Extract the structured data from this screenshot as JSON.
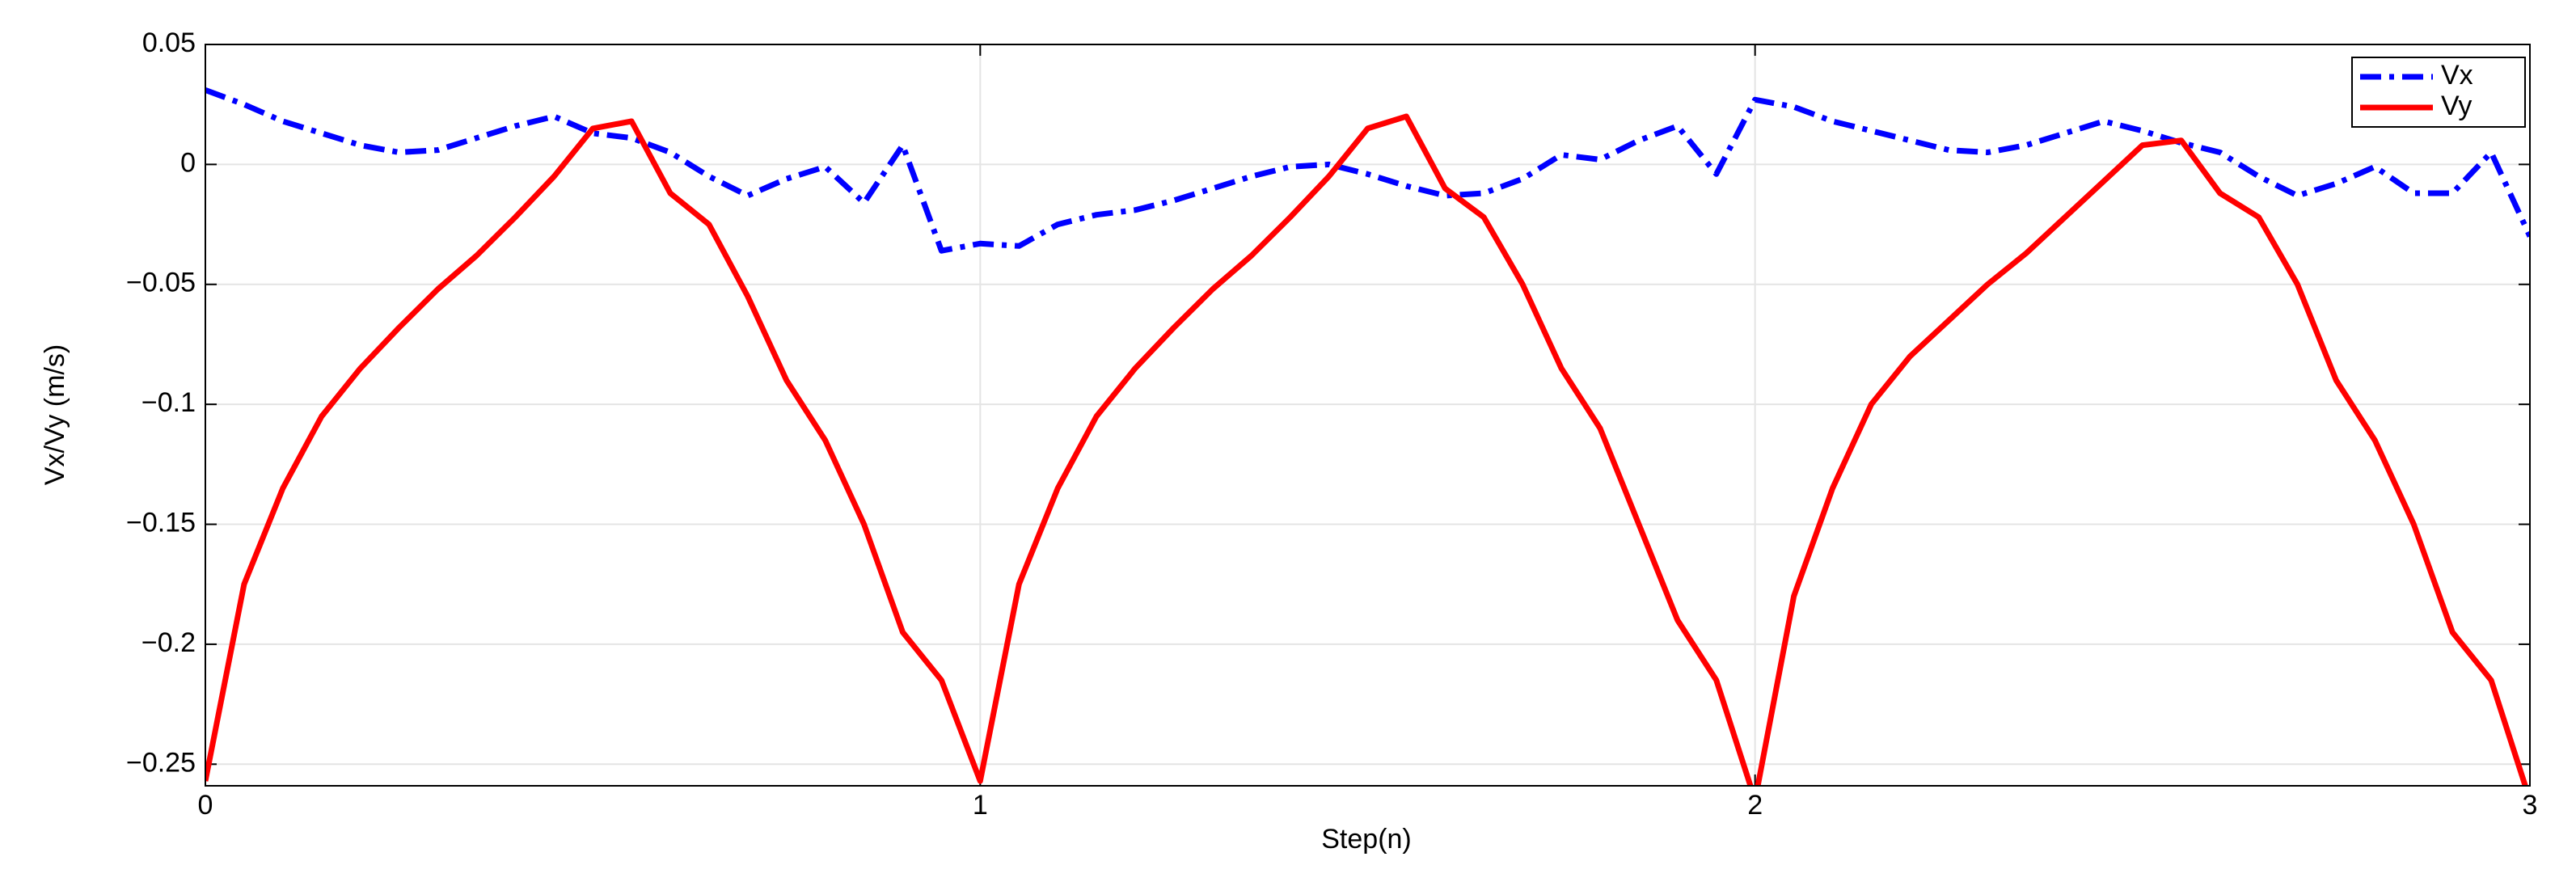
{
  "chart_data": {
    "type": "line",
    "xlabel": "Step(n)",
    "ylabel": "Vx/Vy (m/s)",
    "x": [
      0,
      0.05,
      0.1,
      0.15,
      0.2,
      0.25,
      0.3,
      0.35,
      0.4,
      0.45,
      0.5,
      0.55,
      0.6,
      0.65,
      0.7,
      0.75,
      0.8,
      0.85,
      0.9,
      0.95,
      1,
      1.05,
      1.1,
      1.15,
      1.2,
      1.25,
      1.3,
      1.35,
      1.4,
      1.45,
      1.5,
      1.55,
      1.6,
      1.65,
      1.7,
      1.75,
      1.8,
      1.85,
      1.9,
      1.95,
      2,
      2.05,
      2.1,
      2.15,
      2.2,
      2.25,
      2.3,
      2.35,
      2.4,
      2.45,
      2.5,
      2.55,
      2.6,
      2.65,
      2.7,
      2.75,
      2.8,
      2.85,
      2.9,
      2.95,
      3
    ],
    "series": [
      {
        "name": "Vx",
        "color": "#0000ff",
        "dash": "dashdot",
        "values": [
          0.031,
          0.025,
          0.018,
          0.013,
          0.008,
          0.005,
          0.006,
          0.011,
          0.016,
          0.02,
          0.013,
          0.011,
          0.005,
          -0.005,
          -0.013,
          -0.006,
          -0.001,
          -0.016,
          0.008,
          -0.036,
          -0.033,
          -0.034,
          -0.025,
          -0.021,
          -0.019,
          -0.015,
          -0.01,
          -0.005,
          -0.001,
          0,
          -0.004,
          -0.009,
          -0.013,
          -0.012,
          -0.006,
          0.004,
          0.002,
          0.01,
          0.016,
          -0.004,
          0.027,
          0.024,
          0.018,
          0.014,
          0.01,
          0.006,
          0.005,
          0.008,
          0.013,
          0.018,
          0.014,
          0.009,
          0.005,
          -0.005,
          -0.013,
          -0.008,
          -0.001,
          -0.012,
          -0.012,
          0.005,
          -0.03
        ]
      },
      {
        "name": "Vy",
        "color": "#ff0000",
        "dash": "solid",
        "values": [
          -0.257,
          -0.175,
          -0.135,
          -0.105,
          -0.085,
          -0.068,
          -0.052,
          -0.038,
          -0.022,
          -0.005,
          0.015,
          0.018,
          -0.012,
          -0.025,
          -0.055,
          -0.09,
          -0.115,
          -0.15,
          -0.195,
          -0.215,
          -0.257,
          -0.175,
          -0.135,
          -0.105,
          -0.085,
          -0.068,
          -0.052,
          -0.038,
          -0.022,
          -0.005,
          0.015,
          0.02,
          -0.01,
          -0.022,
          -0.05,
          -0.085,
          -0.11,
          -0.15,
          -0.19,
          -0.215,
          -0.265,
          -0.18,
          -0.135,
          -0.1,
          -0.08,
          -0.065,
          -0.05,
          -0.037,
          -0.022,
          -0.007,
          0.008,
          0.01,
          -0.012,
          -0.022,
          -0.05,
          -0.09,
          -0.115,
          -0.15,
          -0.195,
          -0.215,
          -0.265
        ]
      }
    ],
    "xlim": [
      0,
      3
    ],
    "xticks": [
      0,
      1,
      2,
      3
    ],
    "ylim": [
      -0.259,
      0.05
    ],
    "yticks": [
      0.05,
      0,
      {
        "value": -0.05,
        "label": "−0.05"
      },
      {
        "value": -0.1,
        "label": "−0.1"
      },
      {
        "value": -0.15,
        "label": "−0.15"
      },
      {
        "value": -0.2,
        "label": "−0.2"
      },
      {
        "value": -0.25,
        "label": "−0.25"
      }
    ],
    "grid": true,
    "legend": "upper right"
  }
}
